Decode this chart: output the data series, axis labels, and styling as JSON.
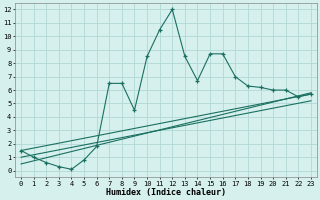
{
  "xlabel": "Humidex (Indice chaleur)",
  "background_color": "#d6f0ee",
  "grid_color": "#b0d8d4",
  "line_color": "#1a7060",
  "xlim": [
    -0.5,
    23.5
  ],
  "ylim": [
    -0.5,
    12.5
  ],
  "xticks": [
    0,
    1,
    2,
    3,
    4,
    5,
    6,
    7,
    8,
    9,
    10,
    11,
    12,
    13,
    14,
    15,
    16,
    17,
    18,
    19,
    20,
    21,
    22,
    23
  ],
  "yticks": [
    0,
    1,
    2,
    3,
    4,
    5,
    6,
    7,
    8,
    9,
    10,
    11,
    12
  ],
  "series1_x": [
    0,
    1,
    2,
    3,
    4,
    5,
    6,
    7,
    8,
    9,
    10,
    11,
    12,
    13,
    14,
    15,
    16,
    17,
    18,
    19,
    20,
    21,
    22,
    23
  ],
  "series1_y": [
    1.5,
    1.0,
    0.6,
    0.3,
    0.1,
    0.8,
    1.8,
    6.5,
    6.5,
    4.5,
    8.5,
    10.5,
    12.0,
    8.5,
    6.7,
    8.7,
    8.7,
    7.0,
    6.3,
    6.2,
    6.0,
    6.0,
    5.5,
    5.7
  ],
  "line2_x": [
    0,
    23
  ],
  "line2_y": [
    1.5,
    5.7
  ],
  "line3_x": [
    0,
    23
  ],
  "line3_y": [
    1.0,
    5.2
  ],
  "line4_x": [
    0,
    23
  ],
  "line4_y": [
    0.5,
    5.8
  ]
}
